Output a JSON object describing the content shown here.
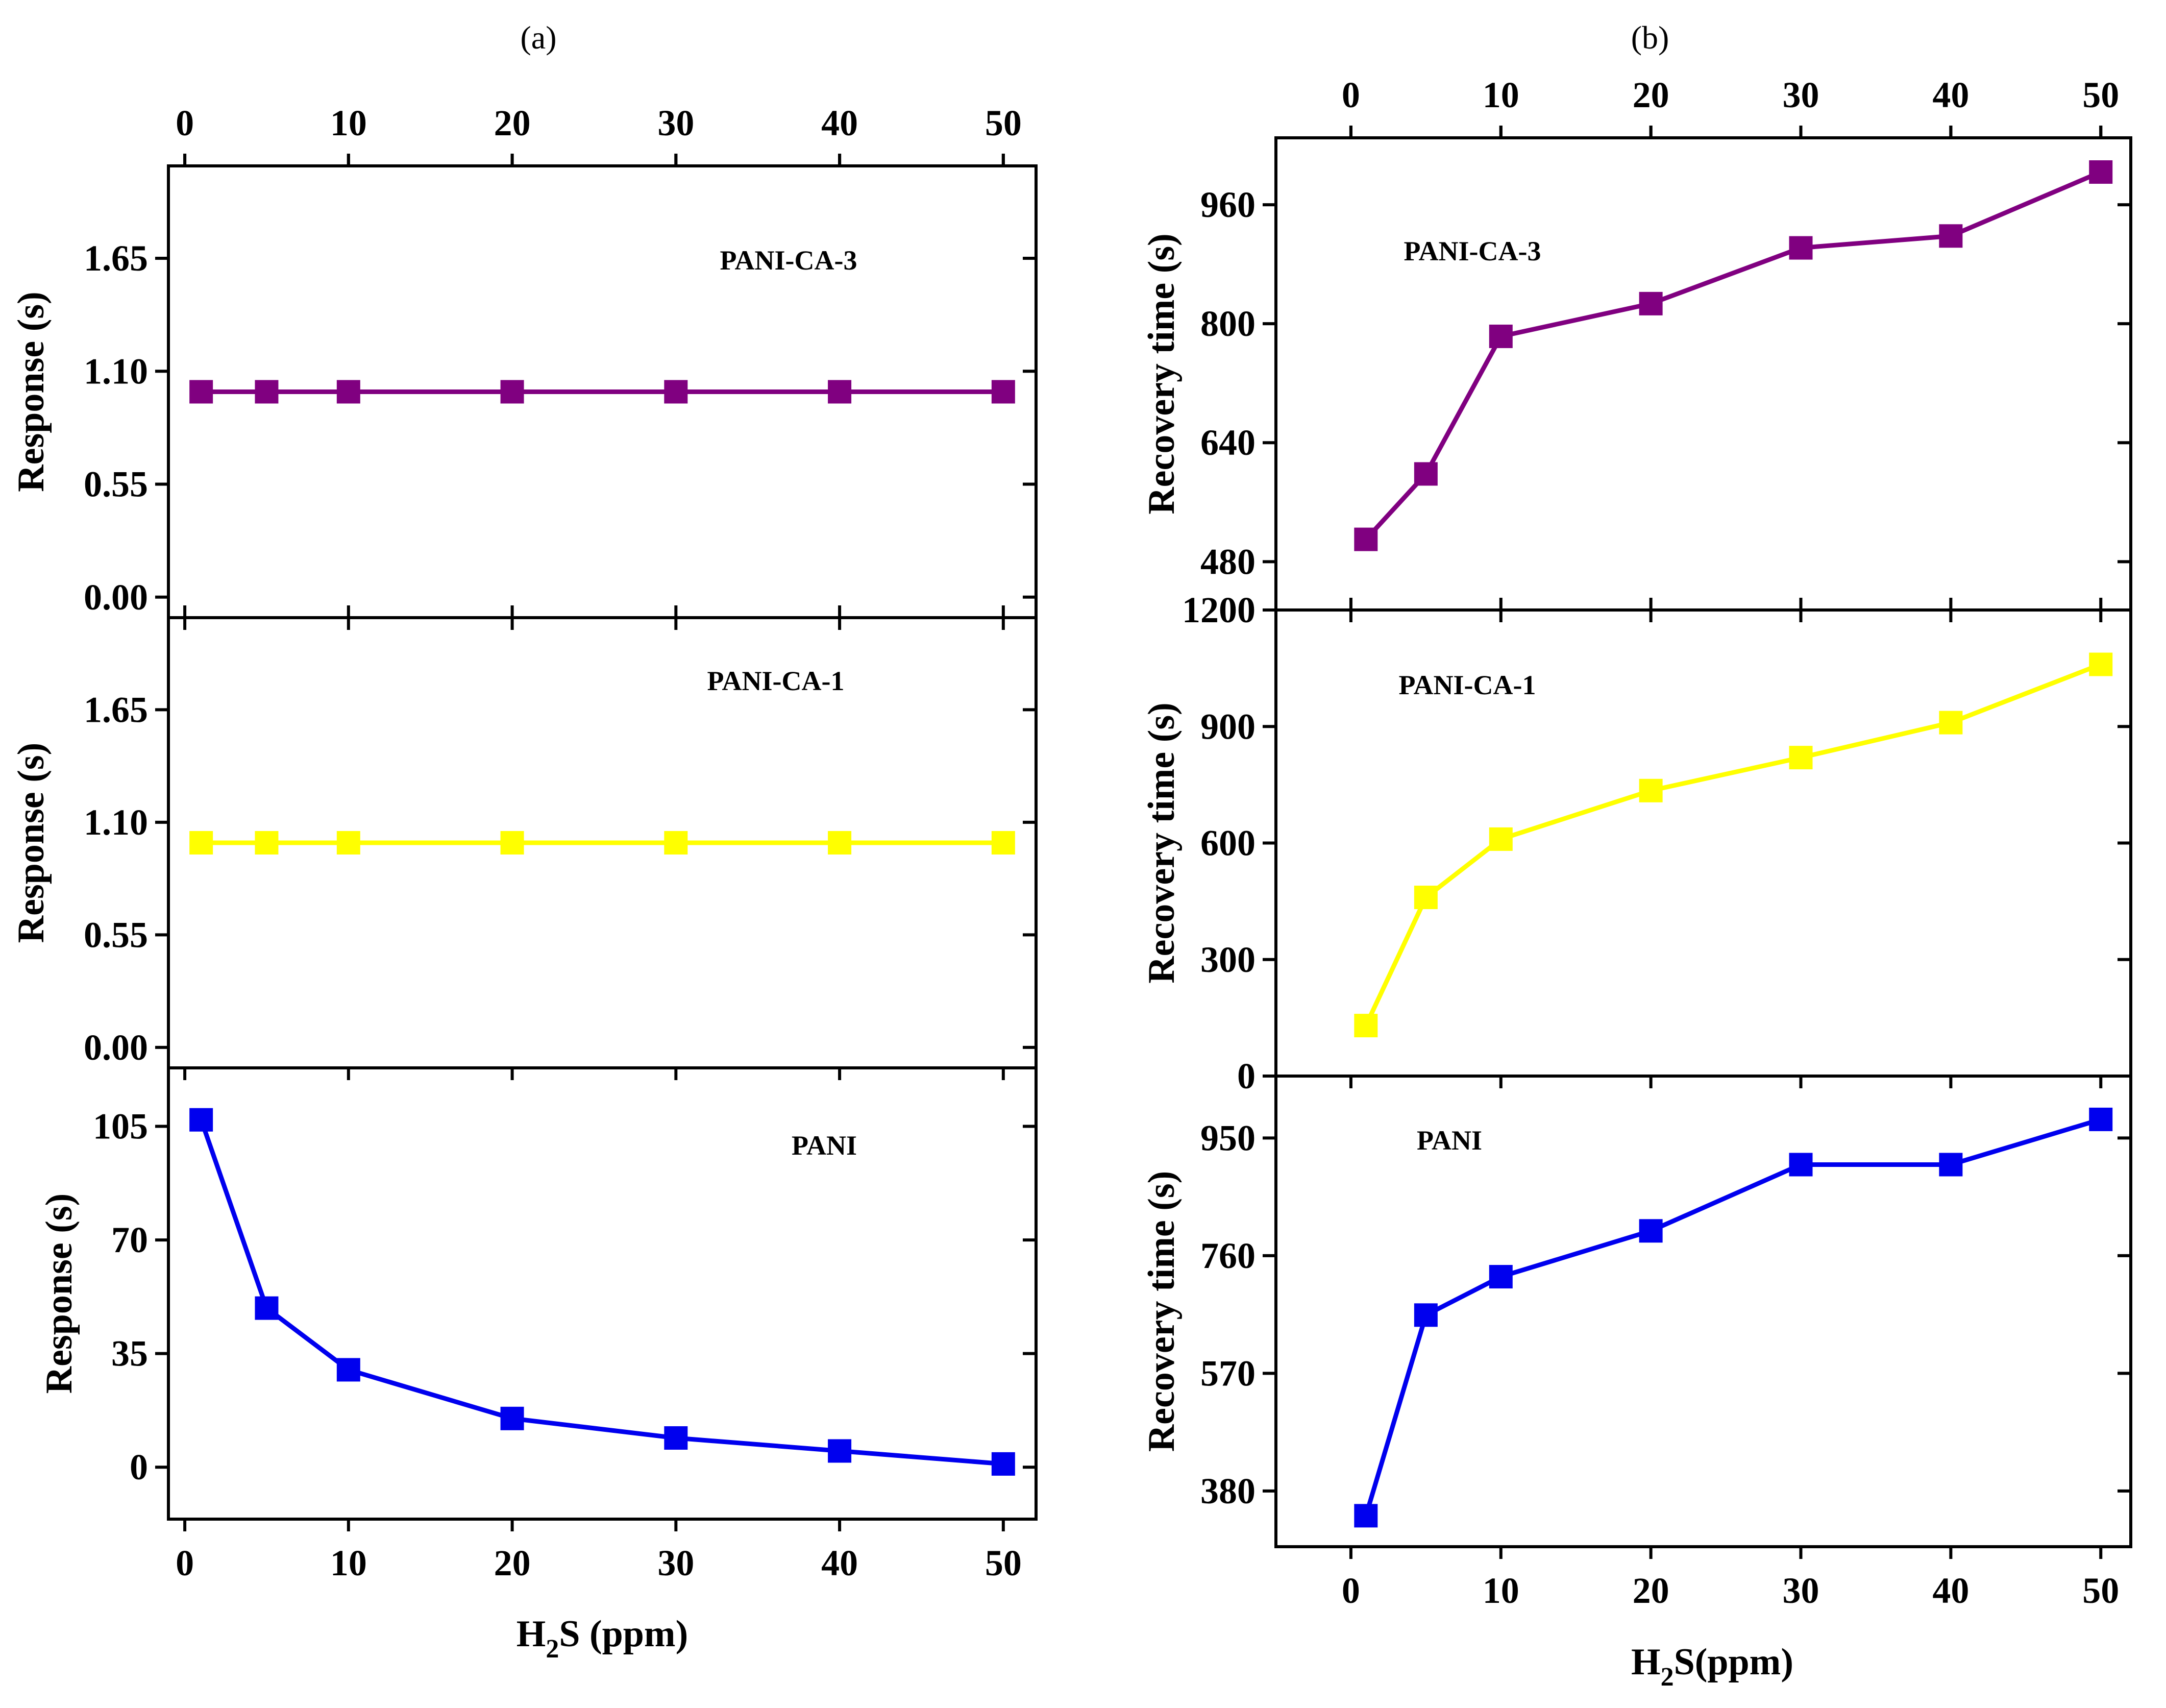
{
  "chart_data": [
    {
      "type": "line",
      "panel": "(a)",
      "label": "PANI-CA-3",
      "x": [
        1,
        5,
        10,
        20,
        30,
        40,
        50
      ],
      "y": [
        1.0,
        1.0,
        1.0,
        1.0,
        1.0,
        1.0,
        1.0
      ],
      "ylabel": "Response (s)",
      "xlabel": "H2S (ppm)",
      "yticks": [
        "0.00",
        "0.55",
        "1.10",
        "1.65"
      ],
      "ylim": [
        -0.1,
        2.1
      ],
      "xticks": [
        "0",
        "10",
        "20",
        "30",
        "40",
        "50"
      ],
      "xlim": [
        -1,
        52
      ],
      "color": "#800080"
    },
    {
      "type": "line",
      "panel": "(a)",
      "label": "PANI-CA-1",
      "x": [
        1,
        5,
        10,
        20,
        30,
        40,
        50
      ],
      "y": [
        1.0,
        1.0,
        1.0,
        1.0,
        1.0,
        1.0,
        1.0
      ],
      "ylabel": "Response (s)",
      "xlabel": "H2S (ppm)",
      "yticks": [
        "0.00",
        "0.55",
        "1.10",
        "1.65"
      ],
      "ylim": [
        -0.1,
        2.1
      ],
      "xticks": [
        "0",
        "10",
        "20",
        "30",
        "40",
        "50"
      ],
      "xlim": [
        -1,
        52
      ],
      "color": "#ffff00"
    },
    {
      "type": "line",
      "panel": "(a)",
      "label": "PANI",
      "x": [
        1,
        5,
        10,
        20,
        30,
        40,
        50
      ],
      "y": [
        107,
        49,
        30,
        15,
        9,
        5,
        1
      ],
      "ylabel": "Response (s)",
      "xlabel": "H2S (ppm)",
      "yticks": [
        "0",
        "35",
        "70",
        "105"
      ],
      "ylim": [
        -16,
        123
      ],
      "xticks": [
        "0",
        "10",
        "20",
        "30",
        "40",
        "50"
      ],
      "xlim": [
        -1,
        52
      ],
      "color": "#0000ee"
    },
    {
      "type": "line",
      "panel": "(b)",
      "label": "PANI-CA-3",
      "x": [
        1,
        5,
        10,
        20,
        30,
        40,
        50
      ],
      "y": [
        510,
        598,
        783,
        827,
        902,
        918,
        1004
      ],
      "ylabel": "Recovery time (s)",
      "xlabel": "H2S(ppm)",
      "yticks": [
        "480",
        "640",
        "800",
        "960"
      ],
      "ylim": [
        415,
        1050
      ],
      "xticks": [
        "0",
        "10",
        "20",
        "30",
        "40",
        "50"
      ],
      "xlim": [
        -5,
        52
      ],
      "color": "#800080"
    },
    {
      "type": "line",
      "panel": "(b)",
      "label": "PANI-CA-1",
      "x": [
        1,
        5,
        10,
        20,
        30,
        40,
        50
      ],
      "y": [
        130,
        460,
        610,
        735,
        820,
        910,
        1060
      ],
      "ylabel": "Recovery time (s)",
      "xlabel": "H2S(ppm)",
      "yticks": [
        "0",
        "300",
        "600",
        "900",
        "1200"
      ],
      "ylim": [
        0,
        1200
      ],
      "xticks": [
        "0",
        "10",
        "20",
        "30",
        "40",
        "50"
      ],
      "xlim": [
        -5,
        52
      ],
      "color": "#ffff00"
    },
    {
      "type": "line",
      "panel": "(b)",
      "label": "PANI",
      "x": [
        1,
        5,
        10,
        20,
        30,
        40,
        50
      ],
      "y": [
        340,
        664,
        726,
        800,
        907,
        907,
        980
      ],
      "ylabel": "Recovery time (s)",
      "xlabel": "H2S(ppm)",
      "yticks": [
        "380",
        "570",
        "760",
        "950"
      ],
      "ylim": [
        290,
        1050
      ],
      "xticks": [
        "0",
        "10",
        "20",
        "30",
        "40",
        "50"
      ],
      "xlim": [
        -5,
        52
      ],
      "color": "#0000ee"
    }
  ],
  "labels": {
    "panel_a": "(a)",
    "panel_b": "(b)",
    "xlabel_a": {
      "main": "H",
      "sub": "2",
      "rest": "S (ppm)"
    },
    "xlabel_b": {
      "main": "H",
      "sub": "2",
      "rest": "S(ppm)"
    }
  }
}
